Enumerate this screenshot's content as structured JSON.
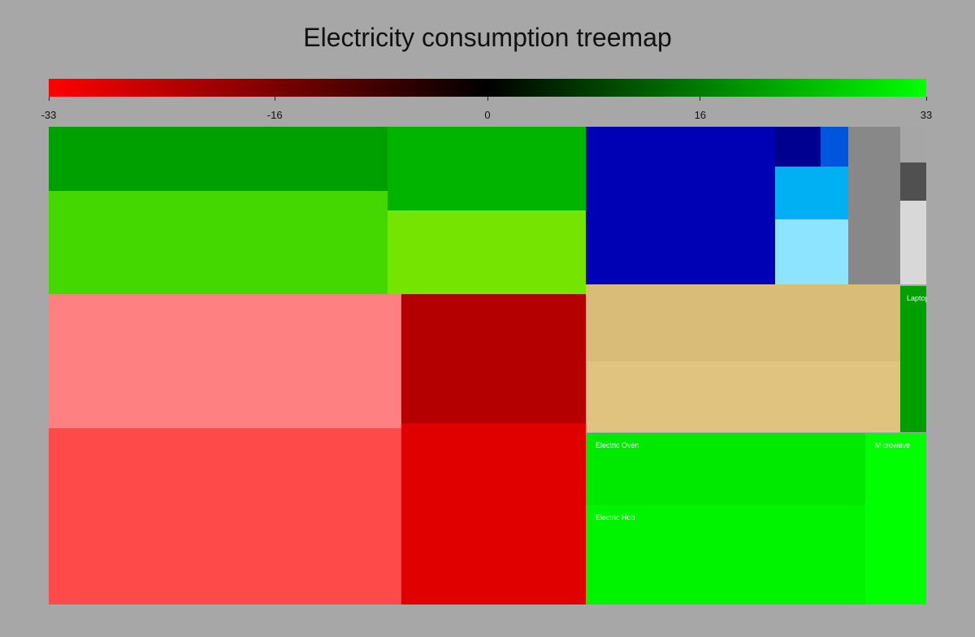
{
  "chart_data": {
    "type": "treemap",
    "title": "Electricity consumption treemap",
    "colorbar": {
      "min": -33,
      "max": 33,
      "ticks": [
        -33,
        -16,
        0,
        16,
        33
      ],
      "tick_labels": [
        "-33",
        "-16",
        "0",
        "16",
        "33"
      ],
      "colors": [
        "#ff0000",
        "#000000",
        "#00ff00"
      ]
    },
    "cells": [
      {
        "color": "#00a000",
        "label": ""
      },
      {
        "color": "#44d800",
        "label": ""
      },
      {
        "color": "#00b400",
        "label": ""
      },
      {
        "color": "#74e400",
        "label": ""
      },
      {
        "color": "#ff8080",
        "label": ""
      },
      {
        "color": "#ff4a4a",
        "label": ""
      },
      {
        "color": "#b40000",
        "label": ""
      },
      {
        "color": "#e00000",
        "label": ""
      },
      {
        "color": "#0000b4",
        "label": ""
      },
      {
        "color": "#000090",
        "label": ""
      },
      {
        "color": "#0055dd",
        "label": ""
      },
      {
        "color": "#00b0f2",
        "label": ""
      },
      {
        "color": "#8ce4ff",
        "label": ""
      },
      {
        "color": "#888888",
        "label": ""
      },
      {
        "color": "#a6a6a6",
        "label": ""
      },
      {
        "color": "#505050",
        "label": ""
      },
      {
        "color": "#d8d8d8",
        "label": ""
      },
      {
        "color": "#d9bc78",
        "label": ""
      },
      {
        "color": "#dfc37e",
        "label": ""
      },
      {
        "color": "#00a000",
        "label": "Laptop"
      },
      {
        "color": "#00ea00",
        "label": "Electric Oven"
      },
      {
        "color": "#00f400",
        "label": "Electric Hob"
      },
      {
        "color": "#00ff00",
        "label": "Microwave"
      }
    ]
  }
}
